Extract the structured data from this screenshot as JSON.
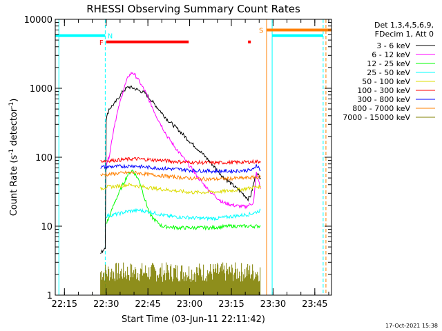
{
  "chart_data": {
    "type": "line",
    "title": "RHESSI Observing Summary Count Rates",
    "xlabel": "Start Time (03-Jun-11 22:11:42)",
    "ylabel_main": "Count Rate (s",
    "ylabel_sup1": "-1",
    "ylabel_mid": " detector",
    "ylabel_sup2": "-1",
    "ylabel_end": ")",
    "y_scale": "log",
    "ylim": [
      1,
      10000
    ],
    "xlim": [
      "22:11:42",
      "23:51:00"
    ],
    "x_ticks": [
      {
        "t": "22:15",
        "label": "22:15"
      },
      {
        "t": "22:30",
        "label": "22:30"
      },
      {
        "t": "22:45",
        "label": "22:45"
      },
      {
        "t": "23:00",
        "label": "23:00"
      },
      {
        "t": "23:15",
        "label": "23:15"
      },
      {
        "t": "23:30",
        "label": "23:30"
      },
      {
        "t": "23:45",
        "label": "23:45"
      }
    ],
    "y_ticks": [
      {
        "v": 1,
        "label": "1"
      },
      {
        "v": 10,
        "label": "10"
      },
      {
        "v": 100,
        "label": "100"
      },
      {
        "v": 1000,
        "label": "1000"
      },
      {
        "v": 10000,
        "label": "10000"
      }
    ],
    "legend_header": [
      "Det 1,3,4,5,6,9,",
      "FDecim 1, Att 0"
    ],
    "legend_position": "right",
    "date_stamp": "17-Oct-2021 15:38",
    "series": [
      {
        "name": "3 - 6 keV",
        "color": "#000000",
        "points": [
          [
            "22:28:00",
            4
          ],
          [
            "22:29:40",
            5
          ],
          [
            "22:30:00",
            350
          ],
          [
            "22:31:00",
            500
          ],
          [
            "22:33:00",
            600
          ],
          [
            "22:36:00",
            900
          ],
          [
            "22:38:00",
            1050
          ],
          [
            "22:40:00",
            1000
          ],
          [
            "22:44:00",
            850
          ],
          [
            "22:48:00",
            550
          ],
          [
            "22:52:00",
            350
          ],
          [
            "22:56:00",
            250
          ],
          [
            "23:00:00",
            170
          ],
          [
            "23:04:00",
            120
          ],
          [
            "23:08:00",
            80
          ],
          [
            "23:12:00",
            52
          ],
          [
            "23:16:00",
            38
          ],
          [
            "23:19:00",
            30
          ],
          [
            "23:21:00",
            25
          ],
          [
            "23:22:00",
            28
          ],
          [
            "23:24:00",
            60
          ],
          [
            "23:25:30",
            50
          ]
        ]
      },
      {
        "name": "6 - 12 keV",
        "color": "#ff00ff",
        "points": [
          [
            "22:30:00",
            80
          ],
          [
            "22:31:00",
            100
          ],
          [
            "22:33:00",
            300
          ],
          [
            "22:36:00",
            900
          ],
          [
            "22:38:00",
            1500
          ],
          [
            "22:39:30",
            1700
          ],
          [
            "22:41:00",
            1450
          ],
          [
            "22:44:00",
            900
          ],
          [
            "22:48:00",
            400
          ],
          [
            "22:52:00",
            200
          ],
          [
            "22:56:00",
            120
          ],
          [
            "23:00:00",
            75
          ],
          [
            "23:04:00",
            45
          ],
          [
            "23:08:00",
            30
          ],
          [
            "23:12:00",
            22
          ],
          [
            "23:16:00",
            20
          ],
          [
            "23:20:00",
            19
          ],
          [
            "23:23:00",
            22
          ],
          [
            "23:24:00",
            60
          ],
          [
            "23:25:30",
            35
          ]
        ]
      },
      {
        "name": "12 - 25 keV",
        "color": "#00ff00",
        "points": [
          [
            "22:30:00",
            11
          ],
          [
            "22:31:00",
            13
          ],
          [
            "22:33:00",
            22
          ],
          [
            "22:36:00",
            40
          ],
          [
            "22:38:00",
            58
          ],
          [
            "22:39:30",
            65
          ],
          [
            "22:42:00",
            45
          ],
          [
            "22:44:00",
            24
          ],
          [
            "22:46:00",
            14
          ],
          [
            "22:50:00",
            10
          ],
          [
            "22:56:00",
            9.5
          ],
          [
            "23:02:00",
            9.5
          ],
          [
            "23:08:00",
            9.5
          ],
          [
            "23:14:00",
            10
          ],
          [
            "23:20:00",
            10
          ],
          [
            "23:25:30",
            10
          ]
        ]
      },
      {
        "name": "25 - 50 keV",
        "color": "#00ffff",
        "points": [
          [
            "22:30:00",
            14
          ],
          [
            "22:34:00",
            15
          ],
          [
            "22:38:00",
            16.5
          ],
          [
            "22:42:00",
            17
          ],
          [
            "22:46:00",
            16
          ],
          [
            "22:52:00",
            14
          ],
          [
            "22:58:00",
            13.5
          ],
          [
            "23:04:00",
            13
          ],
          [
            "23:10:00",
            13
          ],
          [
            "23:16:00",
            14
          ],
          [
            "23:22:00",
            15
          ],
          [
            "23:25:30",
            17
          ]
        ]
      },
      {
        "name": "50 - 100 keV",
        "color": "#dcdc00",
        "points": [
          [
            "22:28:00",
            35
          ],
          [
            "22:30:00",
            37
          ],
          [
            "22:34:00",
            38
          ],
          [
            "22:38:00",
            40
          ],
          [
            "22:42:00",
            38
          ],
          [
            "22:48:00",
            35
          ],
          [
            "22:54:00",
            33
          ],
          [
            "23:00:00",
            31
          ],
          [
            "23:06:00",
            31
          ],
          [
            "23:12:00",
            32
          ],
          [
            "23:18:00",
            34
          ],
          [
            "23:22:00",
            36
          ],
          [
            "23:25:30",
            38
          ]
        ]
      },
      {
        "name": "100 - 300 keV",
        "color": "#ff0000",
        "points": [
          [
            "22:28:00",
            88
          ],
          [
            "22:32:00",
            90
          ],
          [
            "22:36:00",
            92
          ],
          [
            "22:40:00",
            95
          ],
          [
            "22:44:00",
            93
          ],
          [
            "22:50:00",
            90
          ],
          [
            "22:56:00",
            86
          ],
          [
            "23:02:00",
            84
          ],
          [
            "23:08:00",
            83
          ],
          [
            "23:14:00",
            84
          ],
          [
            "23:20:00",
            85
          ],
          [
            "23:25:30",
            87
          ]
        ]
      },
      {
        "name": "300 - 800 keV",
        "color": "#0000ff",
        "points": [
          [
            "22:28:00",
            72
          ],
          [
            "22:32:00",
            73
          ],
          [
            "22:36:00",
            74
          ],
          [
            "22:40:00",
            75
          ],
          [
            "22:44:00",
            72
          ],
          [
            "22:50:00",
            69
          ],
          [
            "22:56:00",
            67
          ],
          [
            "23:02:00",
            64
          ],
          [
            "23:08:00",
            63
          ],
          [
            "23:14:00",
            63
          ],
          [
            "23:20:00",
            64
          ],
          [
            "23:23:00",
            66
          ],
          [
            "23:24:00",
            78
          ],
          [
            "23:25:30",
            65
          ]
        ]
      },
      {
        "name": "800 - 7000 keV",
        "color": "#ff8000",
        "points": [
          [
            "22:28:00",
            55
          ],
          [
            "22:32:00",
            57
          ],
          [
            "22:36:00",
            59
          ],
          [
            "22:40:00",
            60
          ],
          [
            "22:44:00",
            57
          ],
          [
            "22:50:00",
            54
          ],
          [
            "22:56:00",
            51
          ],
          [
            "23:02:00",
            49
          ],
          [
            "23:08:00",
            48
          ],
          [
            "23:14:00",
            49
          ],
          [
            "23:20:00",
            50
          ],
          [
            "23:25:30",
            52
          ]
        ]
      },
      {
        "name": "7000 - 15000 keV",
        "color": "#808000",
        "points": []
      }
    ],
    "baseline_band": {
      "series": "7000 - 15000 keV",
      "from": "22:28:00",
      "to": "23:25:30",
      "low": 1,
      "high": 3
    },
    "vertical_markers": [
      {
        "t": "22:29:40",
        "color": "#00ffff",
        "style": "dashed"
      },
      {
        "t": "22:13:00",
        "color": "#00ffff",
        "style": "solid"
      },
      {
        "t": "23:27:40",
        "color": "#ff8000",
        "style": "solid"
      },
      {
        "t": "23:29:40",
        "color": "#00ffff",
        "style": "solid"
      },
      {
        "t": "23:48:00",
        "color": "#00ffff",
        "style": "dashed"
      },
      {
        "t": "23:49:00",
        "color": "#ff8000",
        "style": "dashed"
      }
    ],
    "flag_bars": [
      {
        "label": "N",
        "color": "#00ffff",
        "from": "22:11:42",
        "to": "22:29:40",
        "y": 5800
      },
      {
        "label": "F",
        "color": "#ff0000",
        "from": "22:30:00",
        "to": "22:59:40",
        "y": 4700
      },
      {
        "label": "",
        "color": "#ff0000",
        "from": "23:21:00",
        "to": "23:22:00",
        "y": 4700
      },
      {
        "label": "S",
        "color": "#ff8000",
        "from": "23:27:40",
        "to": "23:51:00",
        "y": 7000
      },
      {
        "label": "",
        "color": "#00ffff",
        "from": "23:29:40",
        "to": "23:48:00",
        "y": 5800
      }
    ],
    "flag_labels": [
      {
        "label": "N",
        "t": "22:30:30",
        "y": 5800,
        "color": "#00ffff"
      },
      {
        "label": "F",
        "t": "22:29:00",
        "y": 4700,
        "color": "#ff0000"
      },
      {
        "label": "S",
        "t": "23:26:30",
        "y": 7000,
        "color": "#ff8000"
      }
    ]
  }
}
